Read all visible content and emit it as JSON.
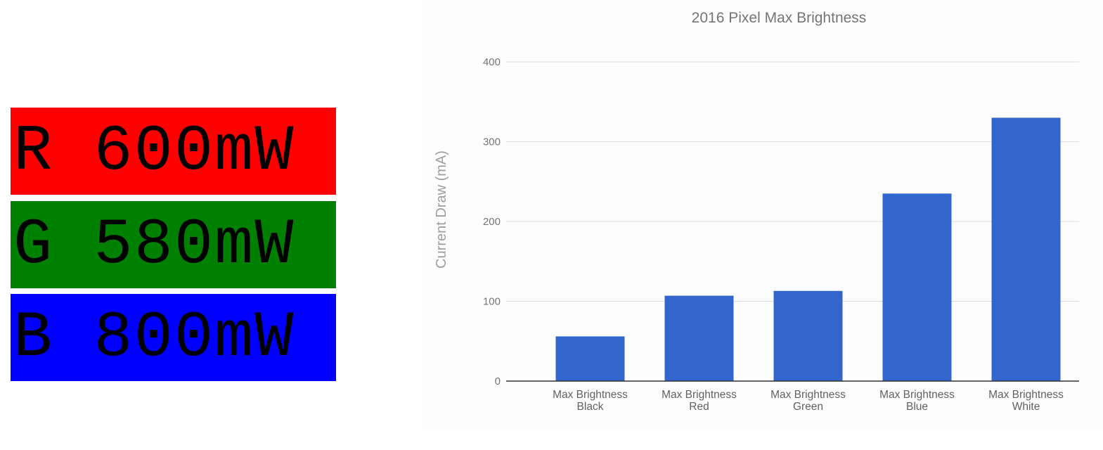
{
  "panels": [
    {
      "id": "r",
      "text": "R 600mW",
      "color": "#ff0000"
    },
    {
      "id": "g",
      "text": "G 580mW",
      "color": "#008000"
    },
    {
      "id": "b",
      "text": "B 800mW",
      "color": "#0000ff"
    }
  ],
  "chart_data": {
    "type": "bar",
    "title": "2016 Pixel Max Brightness",
    "xlabel": "",
    "ylabel": "Current Draw (mA)",
    "categories": [
      [
        "Max Brightness",
        "Black"
      ],
      [
        "Max Brightness",
        "Red"
      ],
      [
        "Max Brightness",
        "Green"
      ],
      [
        "Max Brightness",
        "Blue"
      ],
      [
        "Max Brightness",
        "White"
      ]
    ],
    "values": [
      56,
      107,
      113,
      235,
      330
    ],
    "ylim": [
      0,
      400
    ],
    "yticks": [
      0,
      100,
      200,
      300,
      400
    ],
    "grid": true,
    "legend": "none",
    "bar_color": "#3366cc"
  }
}
